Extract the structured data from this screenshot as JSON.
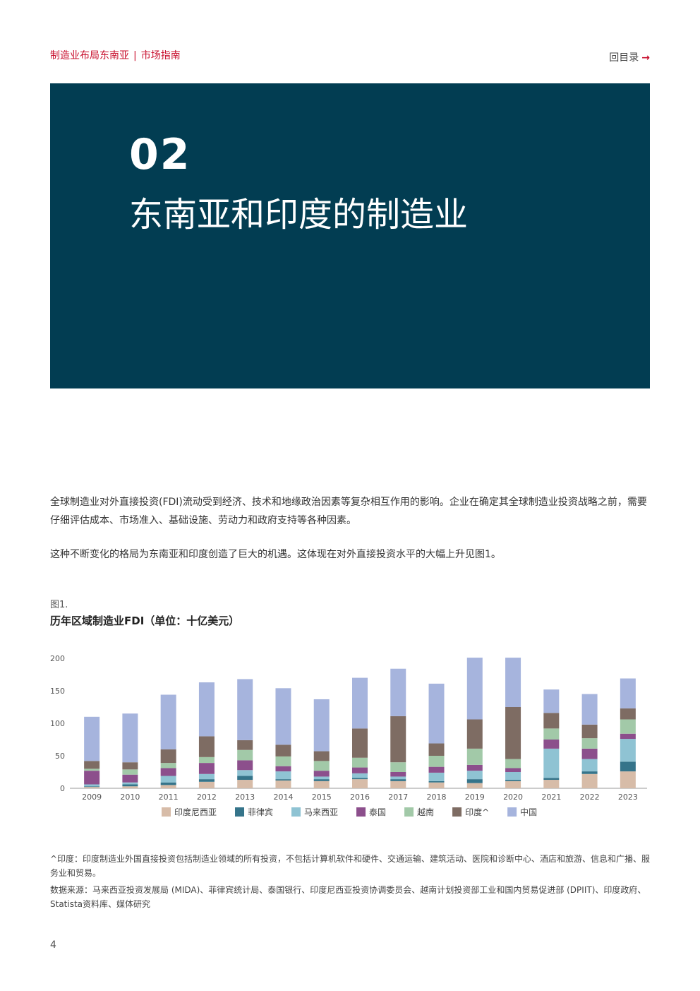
{
  "header": {
    "report_title": "制造业布局东南亚",
    "section_title": "市场指南",
    "toc_link": "回目录",
    "toc_arrow": "→"
  },
  "hero": {
    "chapter_number": "02",
    "chapter_title": "东南亚和印度的制造业",
    "background": "#023d52"
  },
  "body": {
    "paragraph_1": "全球制造业对外直接投资(FDI)流动受到经济、技术和地缘政治因素等复杂相互作用的影响。企业在确定其全球制造业投资战略之前，需要仔细评估成本、市场准入、基础设施、劳动力和政府支持等各种因素。",
    "paragraph_2": "这种不断变化的格局为东南亚和印度创造了巨大的机遇。这体现在对外直接投资水平的大幅上升见图1。"
  },
  "figure": {
    "label": "图1.",
    "title": "历年区域制造业FDI（单位：十亿美元）"
  },
  "chart_data": {
    "type": "bar",
    "stacked": true,
    "title": "历年区域制造业FDI（单位：十亿美元）",
    "categories": [
      "2009",
      "2010",
      "2011",
      "2012",
      "2013",
      "2014",
      "2015",
      "2016",
      "2017",
      "2018",
      "2019",
      "2020",
      "2021",
      "2022",
      "2023"
    ],
    "ylim": [
      0,
      200
    ],
    "yticks": [
      0,
      50,
      100,
      150,
      200
    ],
    "grid": false,
    "legend_position": "bottom",
    "series": [
      {
        "name": "印度尼西亚",
        "color": "#d7bca8",
        "values": [
          2,
          3,
          5,
          10,
          13,
          12,
          11,
          14,
          11,
          9,
          8,
          11,
          13,
          22,
          26
        ]
      },
      {
        "name": "菲律宾",
        "color": "#35748a",
        "values": [
          1,
          3,
          4,
          4,
          6,
          2,
          3,
          2,
          3,
          2,
          6,
          2,
          3,
          4,
          15
        ]
      },
      {
        "name": "马来西亚",
        "color": "#8fc3d3",
        "values": [
          3,
          3,
          10,
          8,
          9,
          12,
          4,
          7,
          4,
          13,
          13,
          12,
          45,
          19,
          35
        ]
      },
      {
        "name": "泰国",
        "color": "#8c4f8c",
        "values": [
          21,
          12,
          12,
          17,
          15,
          8,
          9,
          9,
          7,
          9,
          9,
          6,
          14,
          16,
          8
        ]
      },
      {
        "name": "越南",
        "color": "#a2c9a8",
        "values": [
          3,
          8,
          8,
          9,
          16,
          15,
          15,
          15,
          15,
          17,
          25,
          14,
          17,
          16,
          22
        ]
      },
      {
        "name": "印度^",
        "color": "#7e6c63",
        "values": [
          12,
          11,
          21,
          32,
          15,
          18,
          15,
          45,
          71,
          19,
          45,
          80,
          24,
          21,
          17
        ]
      },
      {
        "name": "中国",
        "color": "#a6b4dd",
        "values": [
          68,
          75,
          84,
          83,
          94,
          87,
          80,
          78,
          73,
          92,
          95,
          76,
          36,
          47,
          46
        ]
      }
    ]
  },
  "footnotes": {
    "note": "^印度：印度制造业外国直接投资包括制造业领域的所有投资，不包括计算机软件和硬件、交通运输、建筑活动、医院和诊断中心、酒店和旅游、信息和广播、服务业和贸易。",
    "source": "数据来源：马来西亚投资发展局 (MIDA)、菲律宾统计局、泰国银行、印度尼西亚投资协调委员会、越南计划投资部工业和国内贸易促进部 (DPIIT)、印度政府、Statista资料库、媒体研究"
  },
  "page_number": "4"
}
